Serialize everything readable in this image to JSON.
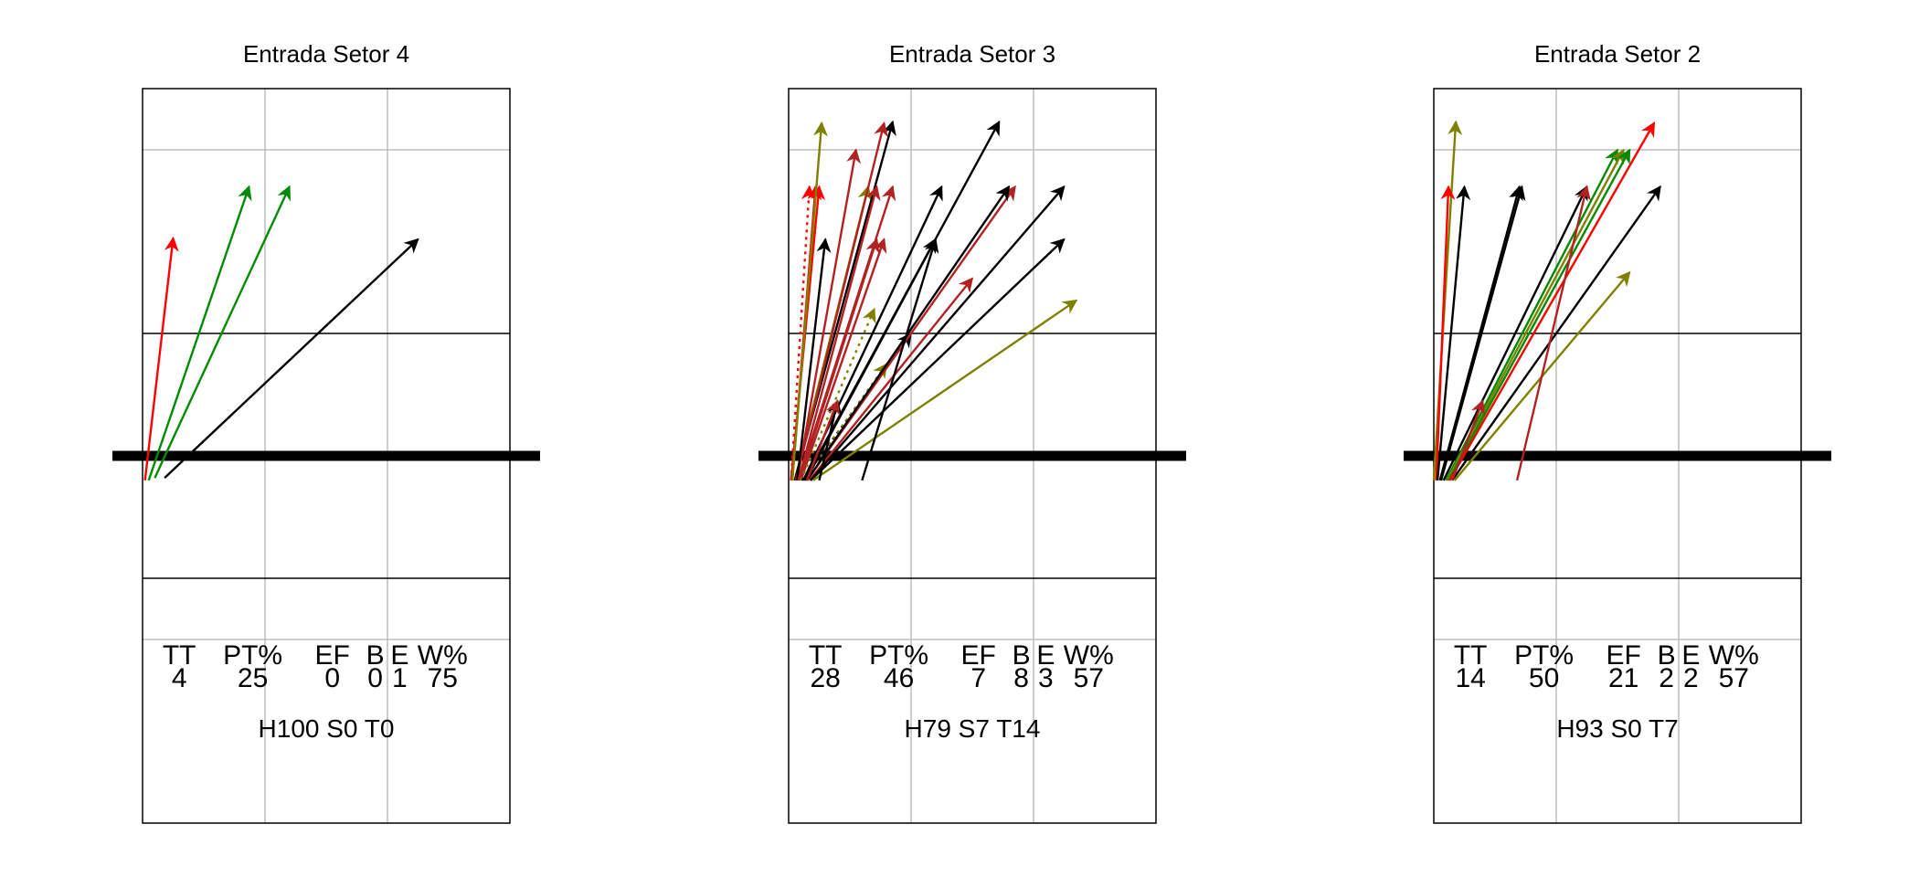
{
  "chart_data": [
    {
      "type": "arrow-map",
      "title": "Entrada Setor 4",
      "stats_header": [
        "TT",
        "PT%",
        "EF",
        "B",
        "E",
        "W%"
      ],
      "stats_values": [
        "4",
        "25",
        "0",
        "0",
        "1",
        "75"
      ],
      "footer": "H100 S0 T0",
      "arrows": [
        {
          "from": [
            0.02,
            -0.2
          ],
          "to": [
            0.25,
            1.78
          ],
          "color": "#ff0000"
        },
        {
          "from": [
            0.05,
            -0.2
          ],
          "to": [
            0.87,
            2.2
          ],
          "color": "#008b00"
        },
        {
          "from": [
            0.1,
            -0.18
          ],
          "to": [
            1.2,
            2.2
          ],
          "color": "#008b00"
        },
        {
          "from": [
            0.18,
            -0.18
          ],
          "to": [
            2.25,
            1.77
          ],
          "color": "#000000"
        }
      ]
    },
    {
      "type": "arrow-map",
      "title": "Entrada Setor 3",
      "stats_header": [
        "TT",
        "PT%",
        "EF",
        "B",
        "E",
        "W%"
      ],
      "stats_values": [
        "28",
        "46",
        "7",
        "8",
        "3",
        "57"
      ],
      "footer": "H79 S7 T14",
      "arrows": [
        {
          "from": [
            0.02,
            -0.2
          ],
          "to": [
            0.17,
            2.2
          ],
          "color": "#ff0000",
          "dash": true
        },
        {
          "from": [
            0.02,
            -0.2
          ],
          "to": [
            0.25,
            2.2
          ],
          "color": "#ff0000"
        },
        {
          "from": [
            0.03,
            -0.2
          ],
          "to": [
            0.22,
            2.2
          ],
          "color": "#ff0000"
        },
        {
          "from": [
            0.03,
            -0.2
          ],
          "to": [
            0.27,
            2.72
          ],
          "color": "#808000"
        },
        {
          "from": [
            0.05,
            -0.2
          ],
          "to": [
            0.65,
            2.2
          ],
          "color": "#808000"
        },
        {
          "from": [
            0.05,
            -0.2
          ],
          "to": [
            0.85,
            2.73
          ],
          "color": "#000000"
        },
        {
          "from": [
            0.06,
            -0.2
          ],
          "to": [
            0.78,
            2.72
          ],
          "color": "#b22222"
        },
        {
          "from": [
            0.07,
            -0.2
          ],
          "to": [
            0.55,
            2.5
          ],
          "color": "#b22222"
        },
        {
          "from": [
            0.07,
            -0.2
          ],
          "to": [
            0.3,
            1.77
          ],
          "color": "#000000"
        },
        {
          "from": [
            0.08,
            -0.2
          ],
          "to": [
            0.72,
            2.2
          ],
          "color": "#b22222"
        },
        {
          "from": [
            0.08,
            -0.2
          ],
          "to": [
            0.85,
            2.2
          ],
          "color": "#b22222"
        },
        {
          "from": [
            0.09,
            -0.2
          ],
          "to": [
            0.72,
            1.77
          ],
          "color": "#b22222"
        },
        {
          "from": [
            0.1,
            -0.2
          ],
          "to": [
            0.78,
            1.77
          ],
          "color": "#b22222"
        },
        {
          "from": [
            0.1,
            -0.2
          ],
          "to": [
            0.7,
            1.2
          ],
          "color": "#808000",
          "dash": true
        },
        {
          "from": [
            0.11,
            -0.2
          ],
          "to": [
            1.0,
            1.0
          ],
          "color": "#000000",
          "dash": true
        },
        {
          "from": [
            0.12,
            -0.2
          ],
          "to": [
            0.8,
            0.75
          ],
          "color": "#808000",
          "dash": true
        },
        {
          "from": [
            0.12,
            -0.2
          ],
          "to": [
            1.25,
            2.2
          ],
          "color": "#000000"
        },
        {
          "from": [
            0.13,
            -0.2
          ],
          "to": [
            1.72,
            2.73
          ],
          "color": "#000000"
        },
        {
          "from": [
            0.14,
            -0.2
          ],
          "to": [
            1.2,
            1.77
          ],
          "color": "#000000"
        },
        {
          "from": [
            0.15,
            -0.2
          ],
          "to": [
            1.85,
            2.2
          ],
          "color": "#b22222"
        },
        {
          "from": [
            0.15,
            -0.2
          ],
          "to": [
            1.8,
            2.2
          ],
          "color": "#000000"
        },
        {
          "from": [
            0.17,
            -0.2
          ],
          "to": [
            1.5,
            1.45
          ],
          "color": "#b22222"
        },
        {
          "from": [
            0.18,
            -0.2
          ],
          "to": [
            2.25,
            2.2
          ],
          "color": "#000000"
        },
        {
          "from": [
            0.18,
            -0.2
          ],
          "to": [
            2.25,
            1.77
          ],
          "color": "#000000"
        },
        {
          "from": [
            0.2,
            -0.2
          ],
          "to": [
            2.35,
            1.27
          ],
          "color": "#808000"
        },
        {
          "from": [
            0.6,
            -0.2
          ],
          "to": [
            1.2,
            1.77
          ],
          "color": "#000000"
        },
        {
          "from": [
            0.25,
            -0.2
          ],
          "to": [
            0.4,
            0.45
          ],
          "color": "#000000"
        },
        {
          "from": [
            0.15,
            -0.2
          ],
          "to": [
            0.4,
            0.45
          ],
          "color": "#b22222"
        }
      ]
    },
    {
      "type": "arrow-map",
      "title": "Entrada Setor 2",
      "stats_header": [
        "TT",
        "PT%",
        "EF",
        "B",
        "E",
        "W%"
      ],
      "stats_values": [
        "14",
        "50",
        "21",
        "2",
        "2",
        "57"
      ],
      "footer": "H93 S0 T7",
      "arrows": [
        {
          "from": [
            0.0,
            -0.2
          ],
          "to": [
            0.18,
            2.73
          ],
          "color": "#808000"
        },
        {
          "from": [
            0.02,
            -0.2
          ],
          "to": [
            0.12,
            2.2
          ],
          "color": "#ff0000"
        },
        {
          "from": [
            0.03,
            -0.2
          ],
          "to": [
            0.25,
            2.2
          ],
          "color": "#000000"
        },
        {
          "from": [
            0.05,
            -0.2
          ],
          "to": [
            0.7,
            2.2
          ],
          "color": "#000000"
        },
        {
          "from": [
            0.06,
            -0.2
          ],
          "to": [
            0.72,
            2.2
          ],
          "color": "#000000"
        },
        {
          "from": [
            0.08,
            -0.2
          ],
          "to": [
            1.25,
            2.2
          ],
          "color": "#000000"
        },
        {
          "from": [
            0.1,
            -0.2
          ],
          "to": [
            1.5,
            2.5
          ],
          "color": "#008b00"
        },
        {
          "from": [
            0.11,
            -0.2
          ],
          "to": [
            1.55,
            2.5
          ],
          "color": "#808000"
        },
        {
          "from": [
            0.12,
            -0.2
          ],
          "to": [
            1.6,
            2.5
          ],
          "color": "#008b00"
        },
        {
          "from": [
            0.13,
            -0.2
          ],
          "to": [
            1.8,
            2.72
          ],
          "color": "#ff0000"
        },
        {
          "from": [
            0.15,
            -0.2
          ],
          "to": [
            1.85,
            2.2
          ],
          "color": "#000000"
        },
        {
          "from": [
            0.17,
            -0.2
          ],
          "to": [
            1.6,
            1.5
          ],
          "color": "#808000"
        },
        {
          "from": [
            0.68,
            -0.2
          ],
          "to": [
            1.25,
            2.2
          ],
          "color": "#b22222"
        },
        {
          "from": [
            0.15,
            -0.2
          ],
          "to": [
            0.4,
            0.45
          ],
          "color": "#b22222"
        }
      ]
    }
  ]
}
